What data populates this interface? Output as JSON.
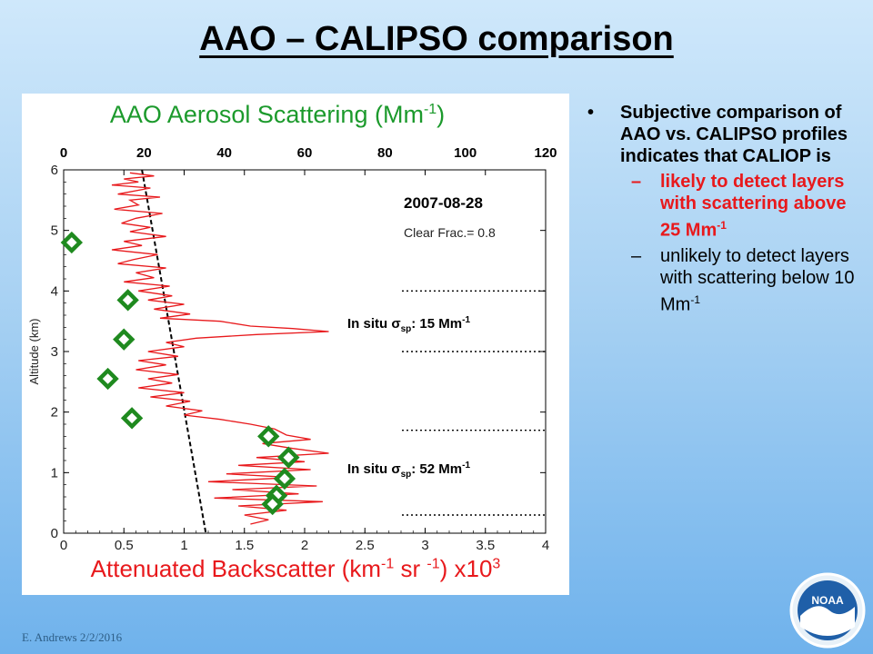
{
  "slide": {
    "title": "AAO – CALIPSO comparison",
    "footer": "E. Andrews   2/2/2016",
    "logo_text": "NOAA"
  },
  "bullets": {
    "main": "Subjective comparison of AAO vs. CALIPSO profiles indicates that CALIOP is",
    "sub1_text": "likely to detect layers with scattering above 25 Mm",
    "sub1_sup": "-1",
    "sub2_text": "unlikely to detect layers with scattering below 10 Mm",
    "sub2_sup": "-1"
  },
  "colors": {
    "profile": "#e8191c",
    "insitu": "#1f8a1f",
    "top_axis_title": "#1c9a2c",
    "bottom_axis_title": "#e8191c"
  },
  "chart_data": {
    "type": "line",
    "top_axis": {
      "title": "AAO Aerosol Scattering (Mm",
      "title_sup": "-1",
      "title_end": ")",
      "range": [
        0,
        120
      ],
      "ticks": [
        0,
        20,
        40,
        60,
        80,
        100,
        120
      ]
    },
    "bottom_axis": {
      "title": "Attenuated Backscatter (km",
      "title_sup1": "-1",
      "title_mid": " sr ",
      "title_sup2": "-1",
      "title_end": ") x10",
      "title_sup3": "3",
      "range": [
        0,
        4
      ],
      "ticks": [
        0,
        0.5,
        1,
        1.5,
        2,
        2.5,
        3,
        3.5,
        4
      ]
    },
    "y_axis": {
      "title": "Altitude (km)",
      "range": [
        0,
        6
      ],
      "ticks": [
        0,
        1,
        2,
        3,
        4,
        5,
        6
      ]
    },
    "annotations": {
      "date": "2007-08-28",
      "clear_frac": "Clear Frac.= 0.8",
      "insitu_upper_prefix": "In situ σ",
      "insitu_upper_sub": "sp",
      "insitu_upper_value": ": 15 Mm",
      "insitu_upper_sup": "-1",
      "insitu_lower_prefix": "In situ σ",
      "insitu_lower_sub": "sp",
      "insitu_lower_value": ": 52 Mm",
      "insitu_lower_sup": "-1"
    },
    "layer_boundaries_km": [
      4.0,
      3.0,
      1.7,
      0.3
    ],
    "fit_line": [
      [
        0.65,
        6.0
      ],
      [
        1.18,
        0.0
      ]
    ],
    "insitu_scattering": [
      {
        "sigma": 2,
        "alt": 4.8
      },
      {
        "sigma": 16,
        "alt": 3.85
      },
      {
        "sigma": 15,
        "alt": 3.2
      },
      {
        "sigma": 11,
        "alt": 2.55
      },
      {
        "sigma": 17,
        "alt": 1.9
      },
      {
        "sigma": 51,
        "alt": 1.6
      },
      {
        "sigma": 56,
        "alt": 1.25
      },
      {
        "sigma": 55,
        "alt": 0.9
      },
      {
        "sigma": 53,
        "alt": 0.62
      },
      {
        "sigma": 52,
        "alt": 0.48
      }
    ],
    "backscatter_profile": [
      [
        0.55,
        5.95
      ],
      [
        0.75,
        5.9
      ],
      [
        0.5,
        5.85
      ],
      [
        0.62,
        5.8
      ],
      [
        0.4,
        5.75
      ],
      [
        0.72,
        5.7
      ],
      [
        0.45,
        5.6
      ],
      [
        0.8,
        5.55
      ],
      [
        0.55,
        5.5
      ],
      [
        0.62,
        5.42
      ],
      [
        0.42,
        5.35
      ],
      [
        0.82,
        5.28
      ],
      [
        0.6,
        5.2
      ],
      [
        0.48,
        5.12
      ],
      [
        0.72,
        5.05
      ],
      [
        0.55,
        4.98
      ],
      [
        0.85,
        4.9
      ],
      [
        0.5,
        4.82
      ],
      [
        0.65,
        4.75
      ],
      [
        0.4,
        4.68
      ],
      [
        0.78,
        4.6
      ],
      [
        0.58,
        4.52
      ],
      [
        0.45,
        4.45
      ],
      [
        0.85,
        4.38
      ],
      [
        0.6,
        4.3
      ],
      [
        0.75,
        4.22
      ],
      [
        0.5,
        4.15
      ],
      [
        0.88,
        4.08
      ],
      [
        0.62,
        4.0
      ],
      [
        0.9,
        3.92
      ],
      [
        0.7,
        3.85
      ],
      [
        1.0,
        3.78
      ],
      [
        0.75,
        3.7
      ],
      [
        1.05,
        3.62
      ],
      [
        0.8,
        3.55
      ],
      [
        1.3,
        3.5
      ],
      [
        1.55,
        3.42
      ],
      [
        1.9,
        3.38
      ],
      [
        2.2,
        3.33
      ],
      [
        1.6,
        3.28
      ],
      [
        1.1,
        3.22
      ],
      [
        0.85,
        3.15
      ],
      [
        1.0,
        3.08
      ],
      [
        0.7,
        3.0
      ],
      [
        0.95,
        2.92
      ],
      [
        0.62,
        2.85
      ],
      [
        0.85,
        2.78
      ],
      [
        0.6,
        2.7
      ],
      [
        0.95,
        2.62
      ],
      [
        0.7,
        2.55
      ],
      [
        0.9,
        2.48
      ],
      [
        0.62,
        2.4
      ],
      [
        1.0,
        2.32
      ],
      [
        0.72,
        2.25
      ],
      [
        1.05,
        2.18
      ],
      [
        0.85,
        2.1
      ],
      [
        1.15,
        2.02
      ],
      [
        1.0,
        1.95
      ],
      [
        1.3,
        1.88
      ],
      [
        1.55,
        1.8
      ],
      [
        1.75,
        1.72
      ],
      [
        1.85,
        1.62
      ],
      [
        2.05,
        1.55
      ],
      [
        1.65,
        1.48
      ],
      [
        1.9,
        1.4
      ],
      [
        2.2,
        1.32
      ],
      [
        1.6,
        1.25
      ],
      [
        2.0,
        1.18
      ],
      [
        1.45,
        1.12
      ],
      [
        2.05,
        1.05
      ],
      [
        1.35,
        0.98
      ],
      [
        1.9,
        0.92
      ],
      [
        1.2,
        0.85
      ],
      [
        2.1,
        0.78
      ],
      [
        1.4,
        0.72
      ],
      [
        1.95,
        0.65
      ],
      [
        1.25,
        0.58
      ],
      [
        2.15,
        0.52
      ],
      [
        1.45,
        0.45
      ],
      [
        1.85,
        0.38
      ],
      [
        1.5,
        0.3
      ],
      [
        1.7,
        0.22
      ],
      [
        1.55,
        0.15
      ]
    ]
  }
}
